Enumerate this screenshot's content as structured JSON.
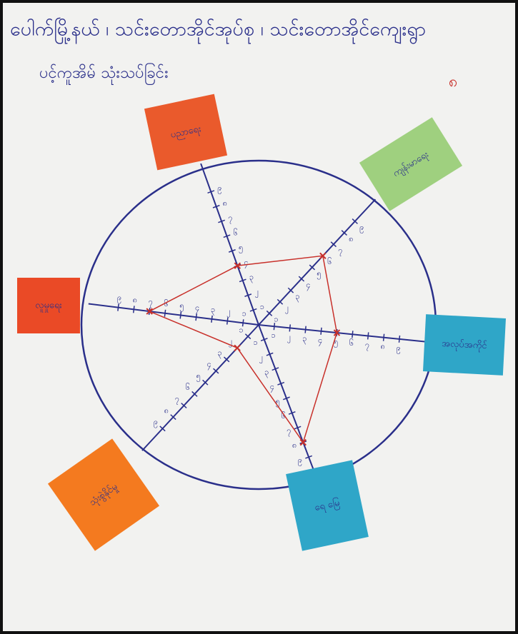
{
  "chart_data": {
    "type": "radar",
    "title": "ပေါက်မြို့နယ် ၊ သင်းတောအိုင်အုပ်စု ၊ သင်းတောအိုင်ကျေးရွာ",
    "subtitle": "ပင့်ကူအိမ် သုံးသပ်ခြင်း",
    "annotation": "၈",
    "categories": [
      "ပညာရေး",
      "ကျန်းမာရေး",
      "အလုပ်အကိုင်",
      "ရေ မြေ",
      "သုံးစွဲနိုင်မှု",
      "လူမှုရေး"
    ],
    "values": [
      4,
      6,
      5,
      8,
      2,
      7
    ],
    "color": "#c8302a",
    "rlim": [
      0,
      10
    ],
    "rticks": [
      {
        "value": 1,
        "label": "၁"
      },
      {
        "value": 2,
        "label": "၂"
      },
      {
        "value": 3,
        "label": "၃"
      },
      {
        "value": 4,
        "label": "၄"
      },
      {
        "value": 5,
        "label": "၅"
      },
      {
        "value": 6,
        "label": "၆"
      },
      {
        "value": 7,
        "label": "၇"
      },
      {
        "value": 8,
        "label": "၈"
      },
      {
        "value": 9,
        "label": "၉"
      }
    ]
  }
}
